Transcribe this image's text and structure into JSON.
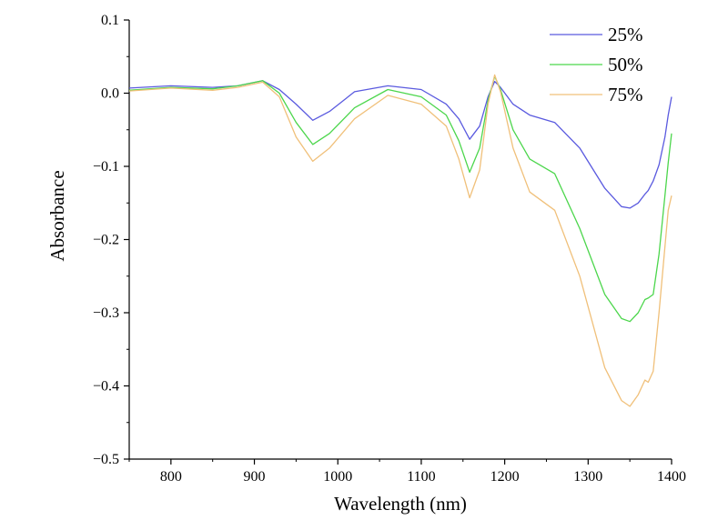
{
  "chart_data": {
    "type": "line",
    "title": "",
    "xlabel": "Wavelength (nm)",
    "ylabel": "Absorbance",
    "xlim": [
      750,
      1400
    ],
    "ylim": [
      -0.5,
      0.1
    ],
    "xticks": [
      800,
      900,
      1000,
      1100,
      1200,
      1300,
      1400
    ],
    "xtick_labels": [
      "800",
      "900",
      "1000",
      "1100",
      "1200",
      "1300",
      "1400"
    ],
    "yticks": [
      0.1,
      0.0,
      -0.1,
      -0.2,
      -0.3,
      -0.4,
      -0.5
    ],
    "ytick_labels": [
      "0.1",
      "0.0",
      "−0.1",
      "−0.2",
      "−0.3",
      "−0.4",
      "−0.5"
    ],
    "grid": false,
    "legend_position": "top-right",
    "series": [
      {
        "name": "25%",
        "color": "#5a5adf",
        "x": [
          750,
          800,
          850,
          880,
          910,
          930,
          950,
          970,
          990,
          1020,
          1060,
          1100,
          1130,
          1145,
          1158,
          1170,
          1180,
          1188,
          1195,
          1210,
          1230,
          1260,
          1290,
          1320,
          1340,
          1350,
          1360,
          1368,
          1372,
          1378,
          1385,
          1392,
          1396,
          1400
        ],
        "values": [
          0.007,
          0.01,
          0.008,
          0.01,
          0.017,
          0.005,
          -0.015,
          -0.037,
          -0.025,
          0.002,
          0.01,
          0.005,
          -0.015,
          -0.035,
          -0.063,
          -0.045,
          -0.005,
          0.016,
          0.008,
          -0.015,
          -0.03,
          -0.04,
          -0.075,
          -0.13,
          -0.155,
          -0.157,
          -0.15,
          -0.138,
          -0.133,
          -0.12,
          -0.098,
          -0.06,
          -0.03,
          -0.005
        ]
      },
      {
        "name": "50%",
        "color": "#4cd64c",
        "x": [
          750,
          800,
          850,
          880,
          910,
          930,
          950,
          970,
          990,
          1020,
          1060,
          1100,
          1130,
          1145,
          1158,
          1170,
          1180,
          1188,
          1195,
          1210,
          1230,
          1260,
          1290,
          1320,
          1340,
          1350,
          1360,
          1368,
          1372,
          1378,
          1385,
          1392,
          1396,
          1400
        ],
        "values": [
          0.004,
          0.008,
          0.006,
          0.01,
          0.017,
          0.0,
          -0.04,
          -0.07,
          -0.055,
          -0.02,
          0.005,
          -0.005,
          -0.03,
          -0.065,
          -0.108,
          -0.075,
          -0.01,
          0.023,
          0.005,
          -0.05,
          -0.09,
          -0.11,
          -0.185,
          -0.275,
          -0.308,
          -0.312,
          -0.3,
          -0.282,
          -0.28,
          -0.275,
          -0.22,
          -0.14,
          -0.095,
          -0.055
        ]
      },
      {
        "name": "75%",
        "color": "#f0c07a",
        "x": [
          750,
          800,
          850,
          880,
          910,
          930,
          950,
          970,
          990,
          1020,
          1060,
          1100,
          1130,
          1145,
          1158,
          1170,
          1180,
          1188,
          1195,
          1210,
          1230,
          1260,
          1290,
          1320,
          1340,
          1350,
          1360,
          1368,
          1372,
          1378,
          1385,
          1392,
          1396,
          1400
        ],
        "values": [
          0.003,
          0.007,
          0.004,
          0.008,
          0.015,
          -0.005,
          -0.06,
          -0.093,
          -0.075,
          -0.035,
          -0.003,
          -0.015,
          -0.045,
          -0.09,
          -0.143,
          -0.105,
          -0.015,
          0.025,
          0.002,
          -0.075,
          -0.135,
          -0.16,
          -0.25,
          -0.375,
          -0.42,
          -0.428,
          -0.412,
          -0.392,
          -0.395,
          -0.38,
          -0.3,
          -0.21,
          -0.16,
          -0.14
        ]
      }
    ]
  }
}
